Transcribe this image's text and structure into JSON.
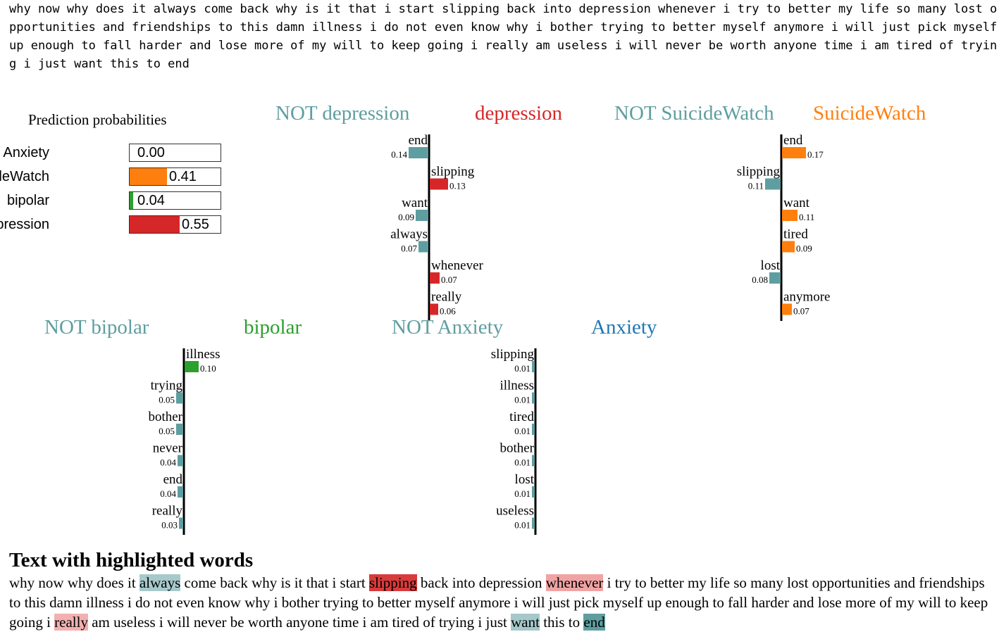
{
  "raw_text": "why now why does it always come back why is it that i start slipping back into depression whenever i try to better my life so many lost opportunities and friendships to this damn illness i do not even know why i bother trying to better myself anymore i will just pick myself up enough to fall harder and lose more of my will to keep going i really am useless i will never be worth anyone time i am tired of trying i just want this to end",
  "prediction": {
    "title": "Prediction probabilities",
    "rows": [
      {
        "label": "Anxiety",
        "value": 0.0,
        "display": "0.00",
        "color": "#1f77b4"
      },
      {
        "label": "SuicideWatch",
        "value": 0.41,
        "display": "0.41",
        "color": "#ff7f0e"
      },
      {
        "label": "bipolar",
        "value": 0.04,
        "display": "0.04",
        "color": "#2ca02c"
      },
      {
        "label": "depression",
        "value": 0.55,
        "display": "0.55",
        "color": "#d62728"
      }
    ]
  },
  "colors": {
    "not": "#5f9ea0",
    "depression": "#d62728",
    "SuicideWatch": "#ff7f0e",
    "bipolar": "#2ca02c",
    "Anxiety": "#1f77b4"
  },
  "explanations": {
    "depression": {
      "not_title": "NOT depression",
      "title": "depression"
    },
    "SuicideWatch": {
      "not_title": "NOT SuicideWatch",
      "title": "SuicideWatch"
    },
    "bipolar": {
      "not_title": "NOT bipolar",
      "title": "bipolar"
    },
    "Anxiety": {
      "not_title": "NOT Anxiety",
      "title": "Anxiety"
    }
  },
  "chart_data": [
    {
      "type": "bar",
      "name": "depression",
      "categories": [
        "end",
        "slipping",
        "want",
        "always",
        "whenever",
        "really"
      ],
      "values": [
        -0.14,
        0.13,
        -0.09,
        -0.07,
        0.07,
        0.06
      ],
      "labels": [
        "0.14",
        "0.13",
        "0.09",
        "0.07",
        "0.07",
        "0.06"
      ]
    },
    {
      "type": "bar",
      "name": "SuicideWatch",
      "categories": [
        "end",
        "slipping",
        "want",
        "tired",
        "lost",
        "anymore"
      ],
      "values": [
        0.17,
        -0.11,
        0.11,
        0.09,
        -0.08,
        0.07
      ],
      "labels": [
        "0.17",
        "0.11",
        "0.11",
        "0.09",
        "0.08",
        "0.07"
      ]
    },
    {
      "type": "bar",
      "name": "bipolar",
      "categories": [
        "illness",
        "trying",
        "bother",
        "never",
        "end",
        "really"
      ],
      "values": [
        0.1,
        -0.05,
        -0.05,
        -0.04,
        -0.04,
        -0.03
      ],
      "labels": [
        "0.10",
        "0.05",
        "0.05",
        "0.04",
        "0.04",
        "0.03"
      ]
    },
    {
      "type": "bar",
      "name": "Anxiety",
      "categories": [
        "slipping",
        "illness",
        "tired",
        "bother",
        "lost",
        "useless"
      ],
      "values": [
        -0.01,
        -0.01,
        -0.01,
        -0.01,
        -0.01,
        -0.01
      ],
      "labels": [
        "0.01",
        "0.01",
        "0.01",
        "0.01",
        "0.01",
        "0.01"
      ]
    }
  ],
  "highlight": {
    "title": "Text with highlighted words",
    "segments": [
      {
        "text": "why now why does it "
      },
      {
        "text": "always",
        "bg": "#a8c9cb"
      },
      {
        "text": " come back why is it that i start "
      },
      {
        "text": "slipping",
        "bg": "#d83b3c"
      },
      {
        "text": " back into depression "
      },
      {
        "text": "whenever",
        "bg": "#f0a3a3"
      },
      {
        "text": " i try to better my life so many lost opportunities and friendships to this damn illness i do not even know why i bother trying to better myself anymore i will just pick myself up enough to fall harder and lose more of my will to keep going i "
      },
      {
        "text": "really",
        "bg": "#f2b0b0"
      },
      {
        "text": " am useless i will never be worth anyone time i am tired of trying i just "
      },
      {
        "text": "want",
        "bg": "#a5c8ca"
      },
      {
        "text": " this to "
      },
      {
        "text": "end",
        "bg": "#5f9ea0"
      }
    ]
  }
}
